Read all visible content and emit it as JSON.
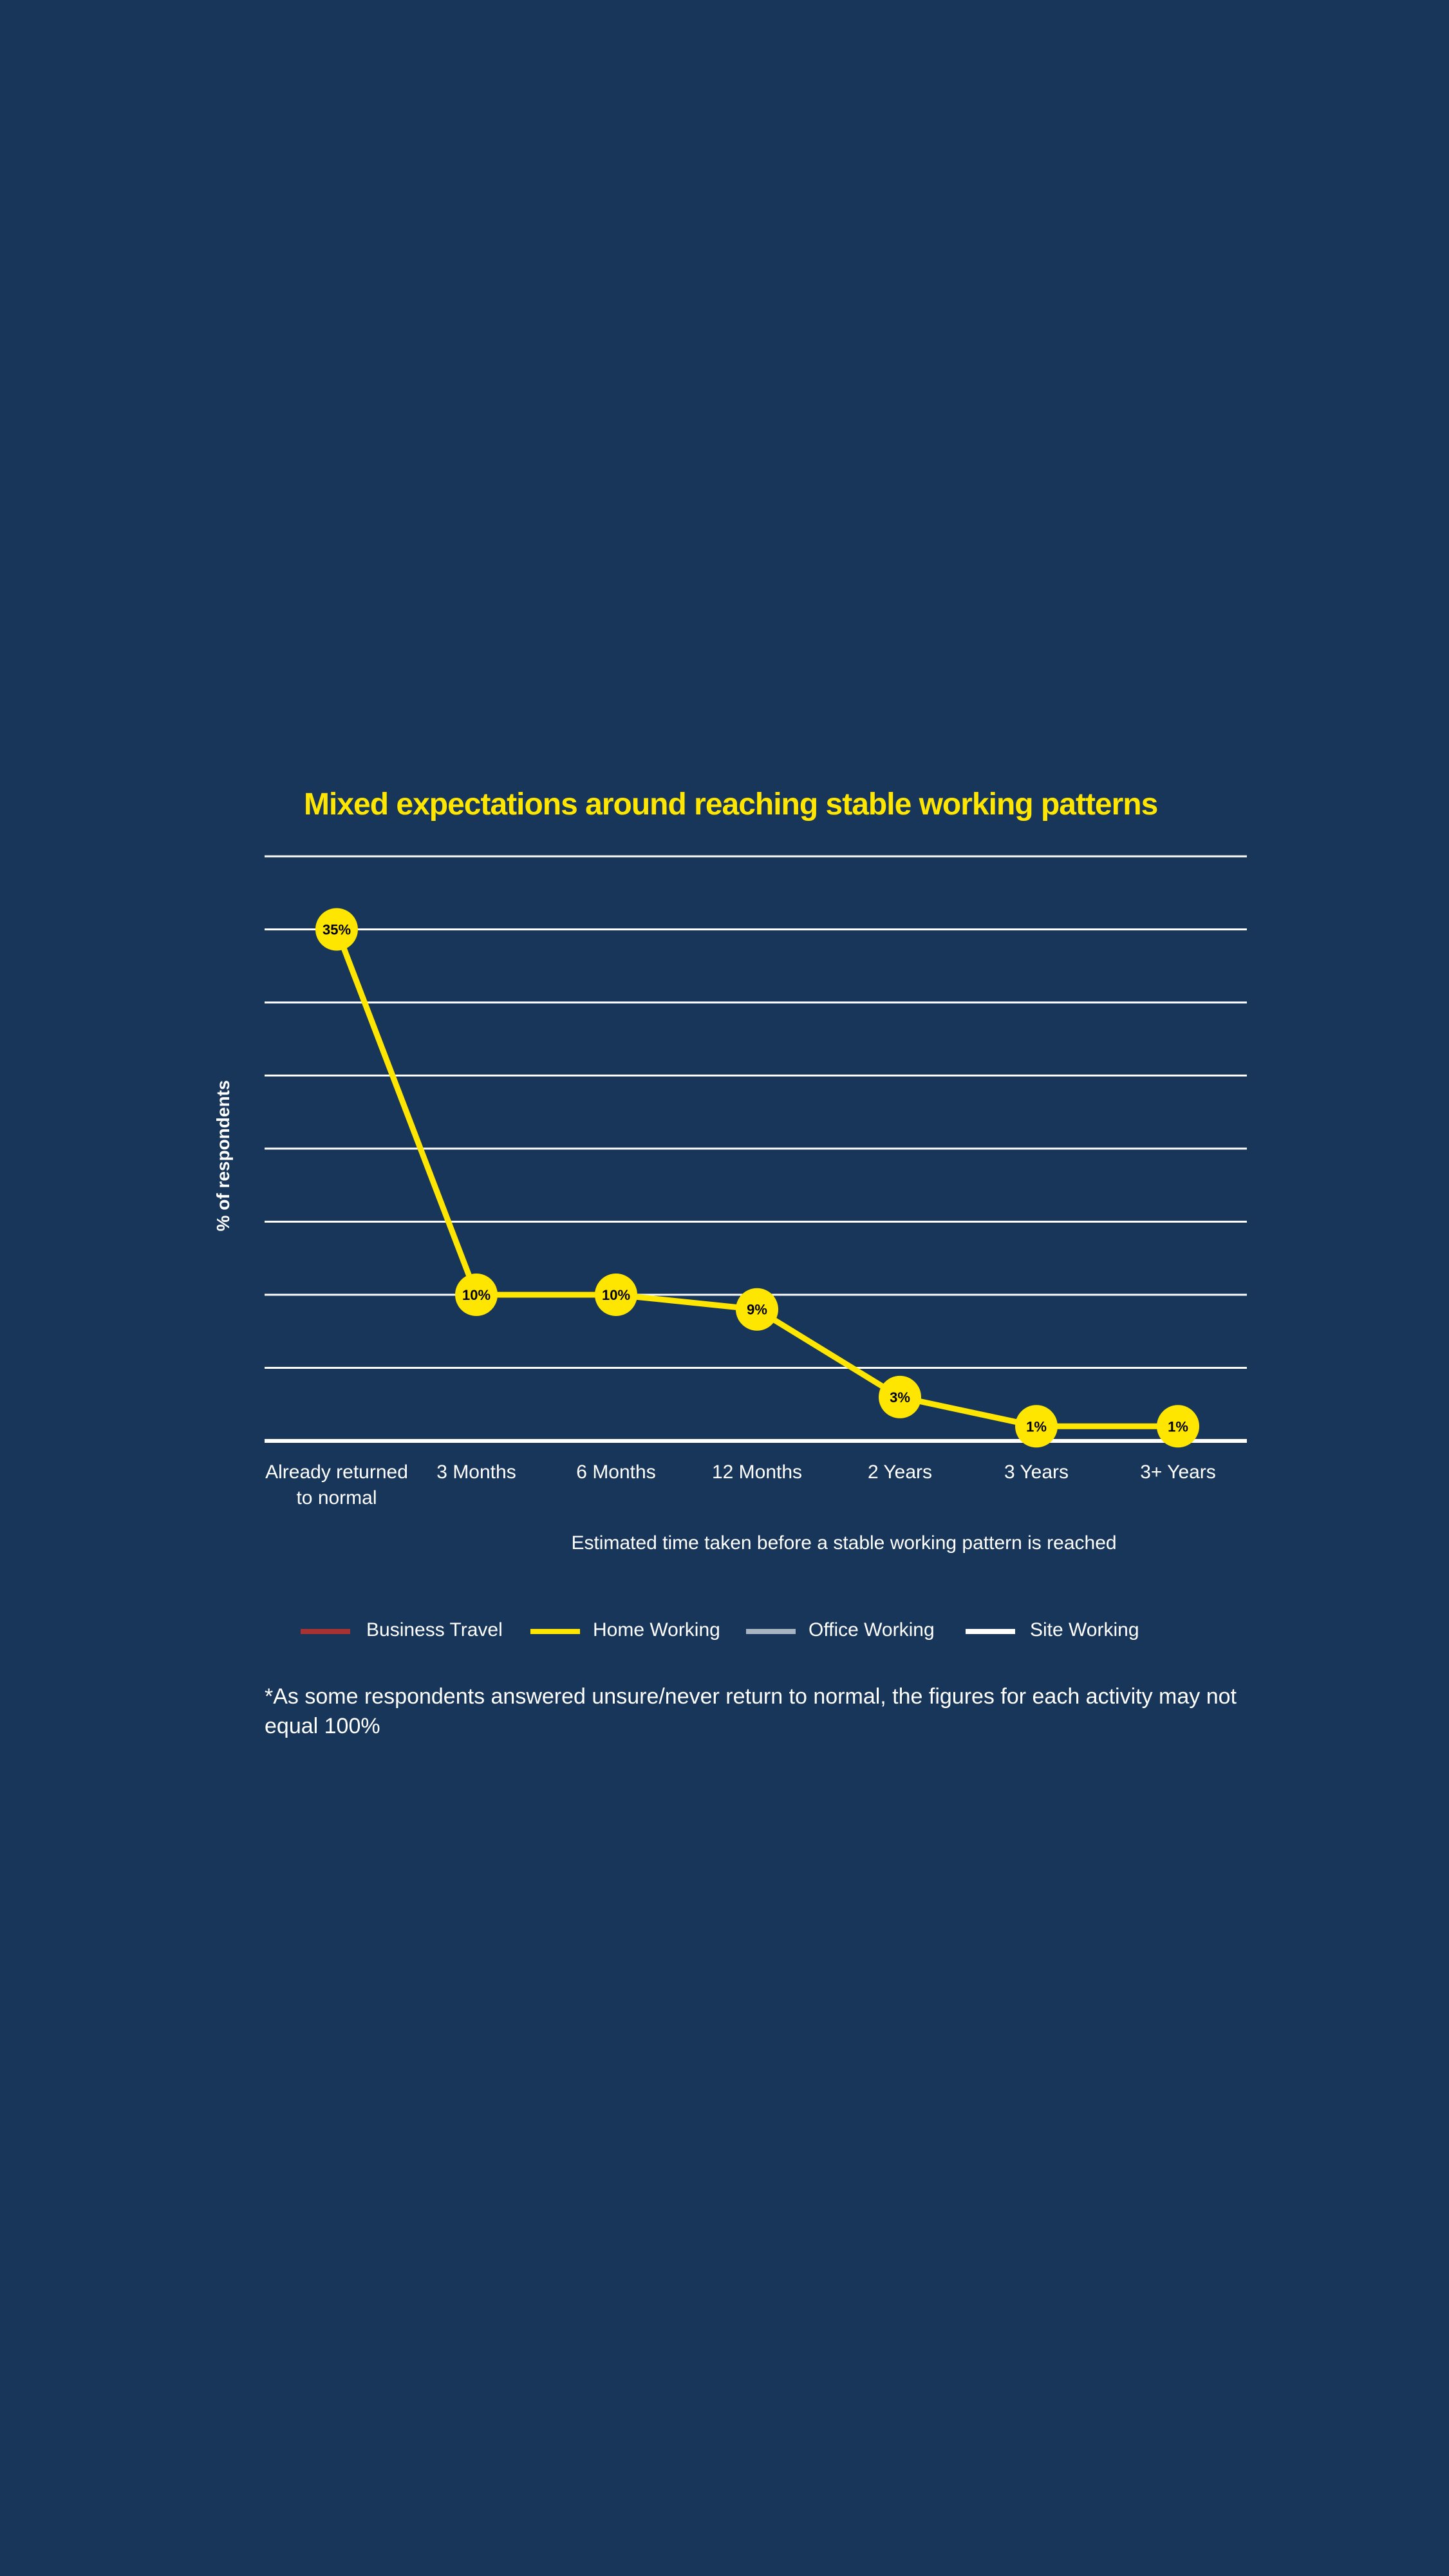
{
  "colors": {
    "background": "#17365a",
    "accent": "#ffe600",
    "grid": "#ffffff"
  },
  "chart_data": {
    "type": "line",
    "title": "Mixed expectations around reaching stable working patterns",
    "xlabel": "Estimated time taken before a stable working pattern is reached",
    "ylabel": "% of respondents",
    "categories": [
      "Already returned to normal",
      "3 Months",
      "6 Months",
      "12 Months",
      "2 Years",
      "3 Years",
      "3+ Years"
    ],
    "category_lines": [
      [
        "Already returned",
        "to normal"
      ],
      [
        "3 Months"
      ],
      [
        "6 Months"
      ],
      [
        "12 Months"
      ],
      [
        "2 Years"
      ],
      [
        "3 Years"
      ],
      [
        "3+ Years"
      ]
    ],
    "ylim": [
      0,
      40
    ],
    "grid_step": 5,
    "grid": true,
    "series": [
      {
        "name": "Home Working",
        "color": "#ffe600",
        "values": [
          35,
          10,
          10,
          9,
          3,
          1,
          1
        ],
        "labels": [
          "35%",
          "10%",
          "10%",
          "9%",
          "3%",
          "1%",
          "1%"
        ]
      }
    ],
    "legend": [
      {
        "name": "Business Travel",
        "color": "#a83232"
      },
      {
        "name": "Home Working",
        "color": "#ffe600"
      },
      {
        "name": "Office Working",
        "color": "#a9b4c2"
      },
      {
        "name": "Site Working",
        "color": "#ffffff"
      }
    ],
    "legend_position": "bottom",
    "footnote": "*As some respondents answered unsure/never return to normal, the figures for each activity may not equal 100%"
  }
}
